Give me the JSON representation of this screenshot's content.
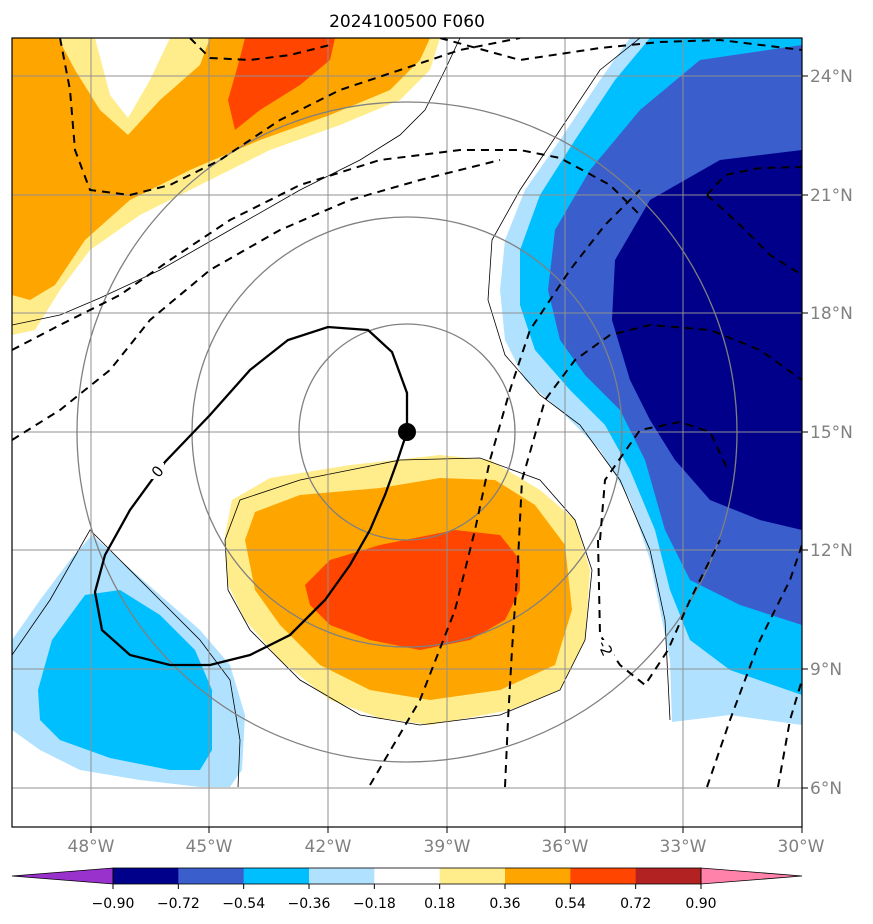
{
  "title": "2024100500 F060",
  "lon_labels": [
    "48°W",
    "45°W",
    "42°W",
    "39°W",
    "36°W",
    "33°W",
    "30°W"
  ],
  "lat_labels": [
    "24°N",
    "21°N",
    "18°N",
    "15°N",
    "12°N",
    "9°N",
    "6°N"
  ],
  "colorbar": {
    "ticks": [
      "−0.90",
      "−0.72",
      "−0.54",
      "−0.36",
      "−0.18",
      "0.18",
      "0.36",
      "0.54",
      "0.72",
      "0.90"
    ],
    "colors": [
      "#9932cc",
      "#00008b",
      "#3a5fcd",
      "#00bfff",
      "#b0e2ff",
      "#ffffff",
      "#ffec8b",
      "#ffa500",
      "#ff4500",
      "#b22222",
      "#ff82ab"
    ]
  },
  "contour_labels": {
    "zero": "0",
    "minus_two": "-2"
  },
  "center_marker": {
    "lon": -40.0,
    "lat": 15.0
  }
}
